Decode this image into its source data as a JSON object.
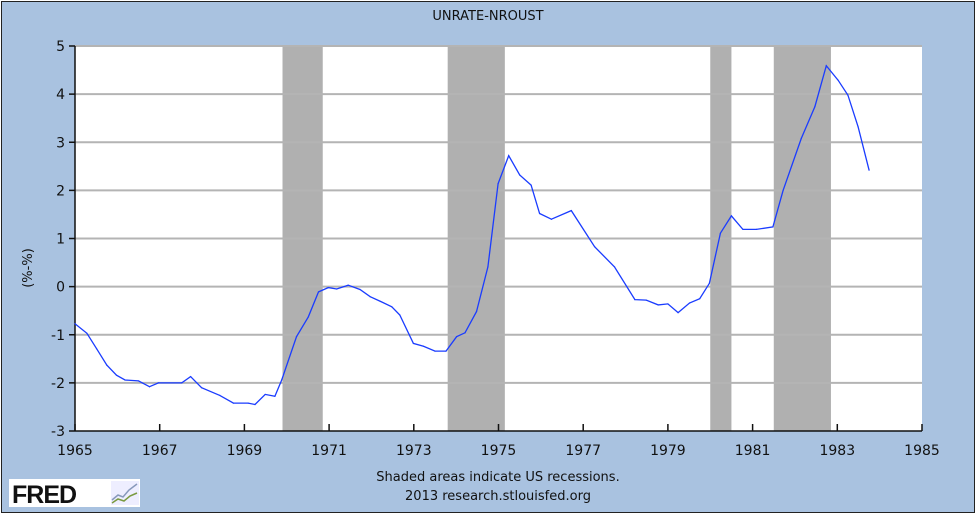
{
  "chart_data": {
    "type": "line",
    "title": "UNRATE-NROUST",
    "xlabel": "",
    "ylabel": "(%-%)",
    "xlim": [
      1965,
      1985
    ],
    "ylim": [
      -3,
      5
    ],
    "grid": true,
    "x_ticks": [
      "1965",
      "1967",
      "1969",
      "1971",
      "1973",
      "1975",
      "1977",
      "1979",
      "1981",
      "1983",
      "1985"
    ],
    "y_ticks": [
      "5",
      "4",
      "3",
      "2",
      "1",
      "0",
      "-1",
      "-2",
      "-3"
    ],
    "recessions": [
      [
        1969.9,
        1970.85
      ],
      [
        1973.8,
        1975.15
      ],
      [
        1980.0,
        1980.5
      ],
      [
        1981.5,
        1982.85
      ]
    ],
    "series": [
      {
        "name": "UNRATE-NROUST",
        "color": "#1a3cff",
        "x": [
          1965.0,
          1965.28,
          1965.51,
          1965.75,
          1965.98,
          1966.18,
          1966.5,
          1966.76,
          1966.97,
          1967.52,
          1967.73,
          1967.99,
          1968.42,
          1968.74,
          1969.09,
          1969.25,
          1969.49,
          1969.72,
          1969.88,
          1970.23,
          1970.51,
          1970.75,
          1970.98,
          1971.18,
          1971.45,
          1971.73,
          1971.97,
          1972.2,
          1972.48,
          1972.67,
          1972.99,
          1973.23,
          1973.5,
          1973.76,
          1974.01,
          1974.21,
          1974.48,
          1974.75,
          1974.99,
          1975.24,
          1975.5,
          1975.77,
          1975.97,
          1976.25,
          1976.72,
          1977.27,
          1977.74,
          1978.22,
          1978.49,
          1978.77,
          1979.0,
          1979.24,
          1979.51,
          1979.75,
          1979.98,
          1980.24,
          1980.5,
          1980.77,
          1981.09,
          1981.48,
          1981.72,
          1982.15,
          1982.47,
          1982.74,
          1983.02,
          1983.25,
          1983.49,
          1983.75
        ],
        "values": [
          -0.77,
          -0.97,
          -1.29,
          -1.63,
          -1.84,
          -1.94,
          -1.96,
          -2.08,
          -2.0,
          -2.0,
          -1.87,
          -2.1,
          -2.26,
          -2.42,
          -2.42,
          -2.45,
          -2.24,
          -2.28,
          -1.94,
          -1.04,
          -0.63,
          -0.11,
          -0.02,
          -0.05,
          0.03,
          -0.06,
          -0.21,
          -0.3,
          -0.42,
          -0.59,
          -1.18,
          -1.24,
          -1.34,
          -1.34,
          -1.04,
          -0.96,
          -0.52,
          0.41,
          2.14,
          2.72,
          2.32,
          2.11,
          1.52,
          1.4,
          1.58,
          0.83,
          0.41,
          -0.27,
          -0.28,
          -0.38,
          -0.36,
          -0.54,
          -0.34,
          -0.25,
          0.07,
          1.11,
          1.47,
          1.19,
          1.19,
          1.24,
          2.0,
          3.08,
          3.74,
          4.59,
          4.29,
          3.98,
          3.32,
          2.42
        ]
      }
    ],
    "annotations": [
      "Shaded areas indicate US recessions.",
      "2013 research.stlouisfed.org"
    ]
  },
  "branding": {
    "logo": "FRED"
  },
  "colors": {
    "background": "#a9c2e0",
    "plot": "#ffffff",
    "recession": "#b0b0b0",
    "grid": "#b4b4b4"
  }
}
